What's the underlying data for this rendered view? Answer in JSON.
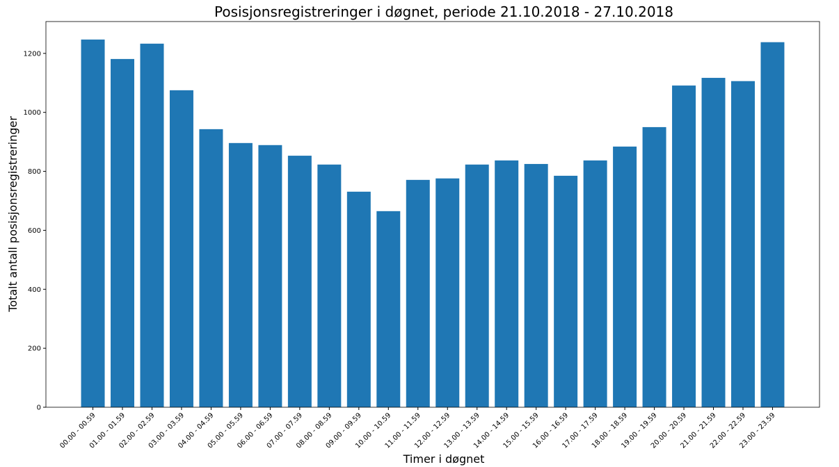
{
  "chart_data": {
    "type": "bar",
    "title": "Posisjonsregistreringer i døgnet, periode 21.10.2018 - 27.10.2018",
    "xlabel": "Timer i døgnet",
    "ylabel": "Totalt antall posisjonsregistreringer",
    "categories": [
      "00.00 - 00.59",
      "01.00 - 01.59",
      "02.00 - 02.59",
      "03.00 - 03.59",
      "04.00 - 04.59",
      "05.00 - 05.59",
      "06.00 - 06.59",
      "07.00 - 07.59",
      "08.00 - 08.59",
      "09.00 - 09.59",
      "10.00 - 10.59",
      "11.00 - 11.59",
      "12.00 - 12.59",
      "13.00 - 13.59",
      "14.00 - 14.59",
      "15.00 - 15.59",
      "16.00 - 16.59",
      "17.00 - 17.59",
      "18.00 - 18.59",
      "19.00 - 19.59",
      "20.00 - 20.59",
      "21.00 - 21.59",
      "22.00 - 22.59",
      "23.00 - 23.59"
    ],
    "values": [
      1247,
      1181,
      1233,
      1075,
      943,
      896,
      889,
      853,
      823,
      731,
      665,
      771,
      776,
      823,
      837,
      825,
      785,
      837,
      884,
      950,
      1091,
      1117,
      1106,
      1238
    ],
    "color": "#1f77b4",
    "ylim": [
      0,
      1308
    ],
    "yticks": [
      0,
      200,
      400,
      600,
      800,
      1000,
      1200
    ],
    "grid": false
  }
}
